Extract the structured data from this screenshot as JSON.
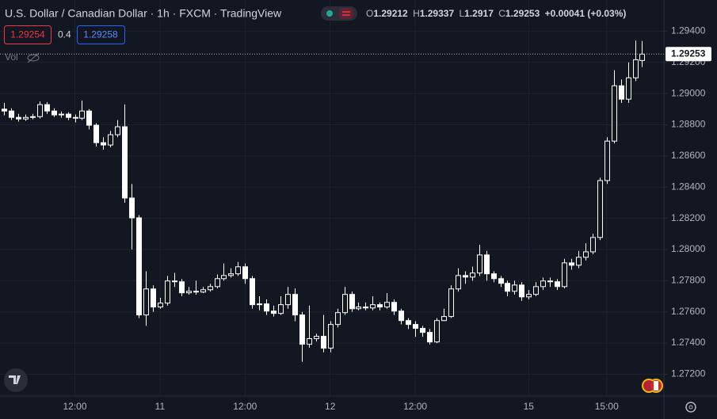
{
  "chart_data": {
    "type": "candlestick",
    "title": "U.S. Dollar / Canadian Dollar · 1h · FXCM · TradingView",
    "ohlc_labels": [
      "O",
      "H",
      "L",
      "C"
    ],
    "change": "+0.00041 (+0.03%)",
    "bid": "1.29254",
    "spread": "0.4",
    "ask": "1.29258",
    "volume_label": "Vol",
    "last_price_label": "1.29253",
    "up_color": "#131722",
    "down_color": "#ffffff",
    "outline_color": "#ffffff",
    "grid": true,
    "categories": [
      null,
      null,
      null,
      null,
      null,
      null,
      null,
      null,
      null,
      null,
      "12:00",
      null,
      null,
      null,
      null,
      null,
      null,
      null,
      null,
      null,
      null,
      null,
      "11",
      null,
      null,
      null,
      null,
      null,
      null,
      null,
      null,
      null,
      null,
      null,
      "12:00",
      null,
      null,
      null,
      null,
      null,
      null,
      null,
      null,
      null,
      null,
      null,
      "12",
      null,
      null,
      null,
      null,
      null,
      null,
      null,
      null,
      null,
      null,
      null,
      "12:00",
      null,
      null,
      null,
      null,
      null,
      null,
      null,
      null,
      null,
      null,
      null,
      null,
      null,
      null,
      null,
      "15",
      null,
      null,
      null,
      null,
      null,
      null,
      null,
      null,
      null,
      null,
      "15:00",
      null,
      null,
      null,
      null,
      null
    ],
    "ohlc": [
      [
        1.289,
        1.2894,
        1.2886,
        1.28888
      ],
      [
        1.28888,
        1.28905,
        1.2883,
        1.28847
      ],
      [
        1.28847,
        1.2887,
        1.2882,
        1.28837
      ],
      [
        1.28837,
        1.28865,
        1.28825,
        1.28847
      ],
      [
        1.28847,
        1.2887,
        1.28835,
        1.28852
      ],
      [
        1.28852,
        1.2895,
        1.2884,
        1.28929
      ],
      [
        1.28929,
        1.28945,
        1.2887,
        1.28888
      ],
      [
        1.28888,
        1.28905,
        1.2885,
        1.28863
      ],
      [
        1.28863,
        1.28885,
        1.28845,
        1.28868
      ],
      [
        1.28868,
        1.2888,
        1.2883,
        1.28847
      ],
      [
        1.28847,
        1.28865,
        1.28815,
        1.28842
      ],
      [
        1.28842,
        1.28955,
        1.2883,
        1.28888
      ],
      [
        1.28888,
        1.289,
        1.2877,
        1.28797
      ],
      [
        1.28797,
        1.2881,
        1.2866,
        1.28685
      ],
      [
        1.28685,
        1.2872,
        1.2864,
        1.2867
      ],
      [
        1.2867,
        1.2876,
        1.28655,
        1.28736
      ],
      [
        1.28736,
        1.2883,
        1.2872,
        1.28787
      ],
      [
        1.28787,
        1.2893,
        1.283,
        1.2833
      ],
      [
        1.2833,
        1.2842,
        1.28,
        1.28203
      ],
      [
        1.28203,
        1.2822,
        1.2756,
        1.2758
      ],
      [
        1.2758,
        1.2786,
        1.2751,
        1.27747
      ],
      [
        1.27747,
        1.2777,
        1.276,
        1.27631
      ],
      [
        1.27631,
        1.2769,
        1.2762,
        1.27656
      ],
      [
        1.27656,
        1.2783,
        1.2764,
        1.27798
      ],
      [
        1.27798,
        1.2785,
        1.2776,
        1.27793
      ],
      [
        1.27793,
        1.2781,
        1.277,
        1.27722
      ],
      [
        1.27722,
        1.2776,
        1.2771,
        1.27732
      ],
      [
        1.27732,
        1.278,
        1.2771,
        1.27727
      ],
      [
        1.27727,
        1.2776,
        1.2772,
        1.27742
      ],
      [
        1.27742,
        1.2778,
        1.2773,
        1.27762
      ],
      [
        1.27762,
        1.2784,
        1.2775,
        1.27813
      ],
      [
        1.27813,
        1.2791,
        1.278,
        1.27833
      ],
      [
        1.27833,
        1.2788,
        1.2782,
        1.27844
      ],
      [
        1.27844,
        1.2792,
        1.2783,
        1.27889
      ],
      [
        1.27889,
        1.2791,
        1.2778,
        1.27813
      ],
      [
        1.27813,
        1.2783,
        1.2762,
        1.27646
      ],
      [
        1.27646,
        1.277,
        1.2761,
        1.27651
      ],
      [
        1.27651,
        1.2768,
        1.2758,
        1.27605
      ],
      [
        1.27605,
        1.2764,
        1.2757,
        1.2759
      ],
      [
        1.2759,
        1.277,
        1.2758,
        1.27646
      ],
      [
        1.27646,
        1.2776,
        1.2762,
        1.27712
      ],
      [
        1.27712,
        1.2775,
        1.2754,
        1.2758
      ],
      [
        1.2758,
        1.276,
        1.2728,
        1.27392
      ],
      [
        1.27392,
        1.2764,
        1.2737,
        1.27428
      ],
      [
        1.27428,
        1.2746,
        1.2741,
        1.27443
      ],
      [
        1.27443,
        1.2758,
        1.2734,
        1.27367
      ],
      [
        1.27367,
        1.2754,
        1.2734,
        1.27519
      ],
      [
        1.27519,
        1.2762,
        1.275,
        1.27595
      ],
      [
        1.27595,
        1.2776,
        1.2758,
        1.27712
      ],
      [
        1.27712,
        1.2773,
        1.276,
        1.2762
      ],
      [
        1.2762,
        1.2766,
        1.2761,
        1.27631
      ],
      [
        1.27631,
        1.2766,
        1.2761,
        1.27625
      ],
      [
        1.27625,
        1.277,
        1.2761,
        1.27646
      ],
      [
        1.27646,
        1.2766,
        1.2761,
        1.27631
      ],
      [
        1.27631,
        1.2772,
        1.2762,
        1.27661
      ],
      [
        1.27661,
        1.2768,
        1.2758,
        1.27605
      ],
      [
        1.27605,
        1.2762,
        1.2752,
        1.27544
      ],
      [
        1.27544,
        1.2756,
        1.2749,
        1.27519
      ],
      [
        1.27519,
        1.2754,
        1.2744,
        1.27494
      ],
      [
        1.27494,
        1.2751,
        1.2744,
        1.27468
      ],
      [
        1.27468,
        1.2749,
        1.2739,
        1.27407
      ],
      [
        1.27407,
        1.2756,
        1.274,
        1.27544
      ],
      [
        1.27544,
        1.2762,
        1.2754,
        1.2757
      ],
      [
        1.2757,
        1.2777,
        1.2756,
        1.27747
      ],
      [
        1.27747,
        1.2788,
        1.2773,
        1.27833
      ],
      [
        1.27833,
        1.2786,
        1.2778,
        1.27823
      ],
      [
        1.27823,
        1.2789,
        1.278,
        1.27849
      ],
      [
        1.27849,
        1.2803,
        1.2783,
        1.27965
      ],
      [
        1.27965,
        1.2799,
        1.278,
        1.27844
      ],
      [
        1.27844,
        1.2786,
        1.2779,
        1.27813
      ],
      [
        1.27813,
        1.2783,
        1.2776,
        1.27783
      ],
      [
        1.27783,
        1.278,
        1.277,
        1.27732
      ],
      [
        1.27732,
        1.278,
        1.2771,
        1.27772
      ],
      [
        1.27772,
        1.2779,
        1.2767,
        1.27696
      ],
      [
        1.27696,
        1.2774,
        1.2768,
        1.27712
      ],
      [
        1.27712,
        1.2779,
        1.277,
        1.27762
      ],
      [
        1.27762,
        1.2782,
        1.2774,
        1.27798
      ],
      [
        1.27798,
        1.2782,
        1.2776,
        1.27793
      ],
      [
        1.27793,
        1.2781,
        1.2774,
        1.27762
      ],
      [
        1.27762,
        1.2794,
        1.2775,
        1.27914
      ],
      [
        1.27914,
        1.2794,
        1.2787,
        1.27899
      ],
      [
        1.27899,
        1.2799,
        1.2788,
        1.2795
      ],
      [
        1.2795,
        1.2804,
        1.2793,
        1.27985
      ],
      [
        1.27985,
        1.281,
        1.2797,
        1.28077
      ],
      [
        1.28077,
        1.2846,
        1.2806,
        1.28442
      ],
      [
        1.28442,
        1.2872,
        1.2842,
        1.28695
      ],
      [
        1.28695,
        1.2915,
        1.2868,
        1.2905
      ],
      [
        1.2905,
        1.2909,
        1.2894,
        1.28964
      ],
      [
        1.28964,
        1.292,
        1.2894,
        1.29101
      ],
      [
        1.29101,
        1.2934,
        1.2908,
        1.29217
      ],
      [
        1.29212,
        1.29337,
        1.2917,
        1.29253
      ]
    ],
    "ylim": [
      1.2706,
      1.296
    ],
    "yticks": [
      {
        "value": 1.272,
        "label": "1.27200"
      },
      {
        "value": 1.274,
        "label": "1.27400"
      },
      {
        "value": 1.276,
        "label": "1.27600"
      },
      {
        "value": 1.278,
        "label": "1.27800"
      },
      {
        "value": 1.28,
        "label": "1.28000"
      },
      {
        "value": 1.282,
        "label": "1.28200"
      },
      {
        "value": 1.284,
        "label": "1.28400"
      },
      {
        "value": 1.286,
        "label": "1.28600"
      },
      {
        "value": 1.288,
        "label": "1.28800"
      },
      {
        "value": 1.29,
        "label": "1.29000"
      },
      {
        "value": 1.292,
        "label": "1.29200"
      },
      {
        "value": 1.294,
        "label": "1.29400"
      }
    ]
  }
}
